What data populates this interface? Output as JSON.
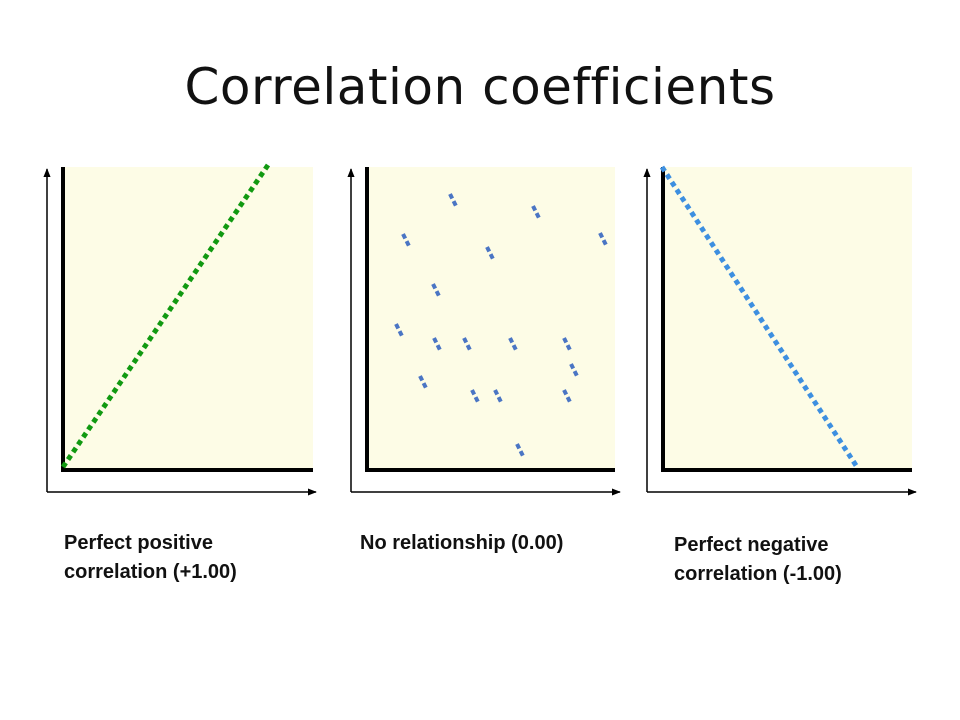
{
  "title": "Correlation coefficients",
  "colors": {
    "plot_background": "#fdfce6",
    "positive_line": "#119911",
    "points": "#4a75c4",
    "negative_line": "#3d8fe0"
  },
  "panels": [
    {
      "caption_line1": "Perfect positive",
      "caption_line2": "correlation (+1.00)",
      "coefficient": 1.0
    },
    {
      "caption_line1": "No relationship (0.00)",
      "coefficient": 0.0
    },
    {
      "caption_line1": "Perfect negative",
      "caption_line2": "correlation (-1.00)",
      "coefficient": -1.0
    }
  ]
}
